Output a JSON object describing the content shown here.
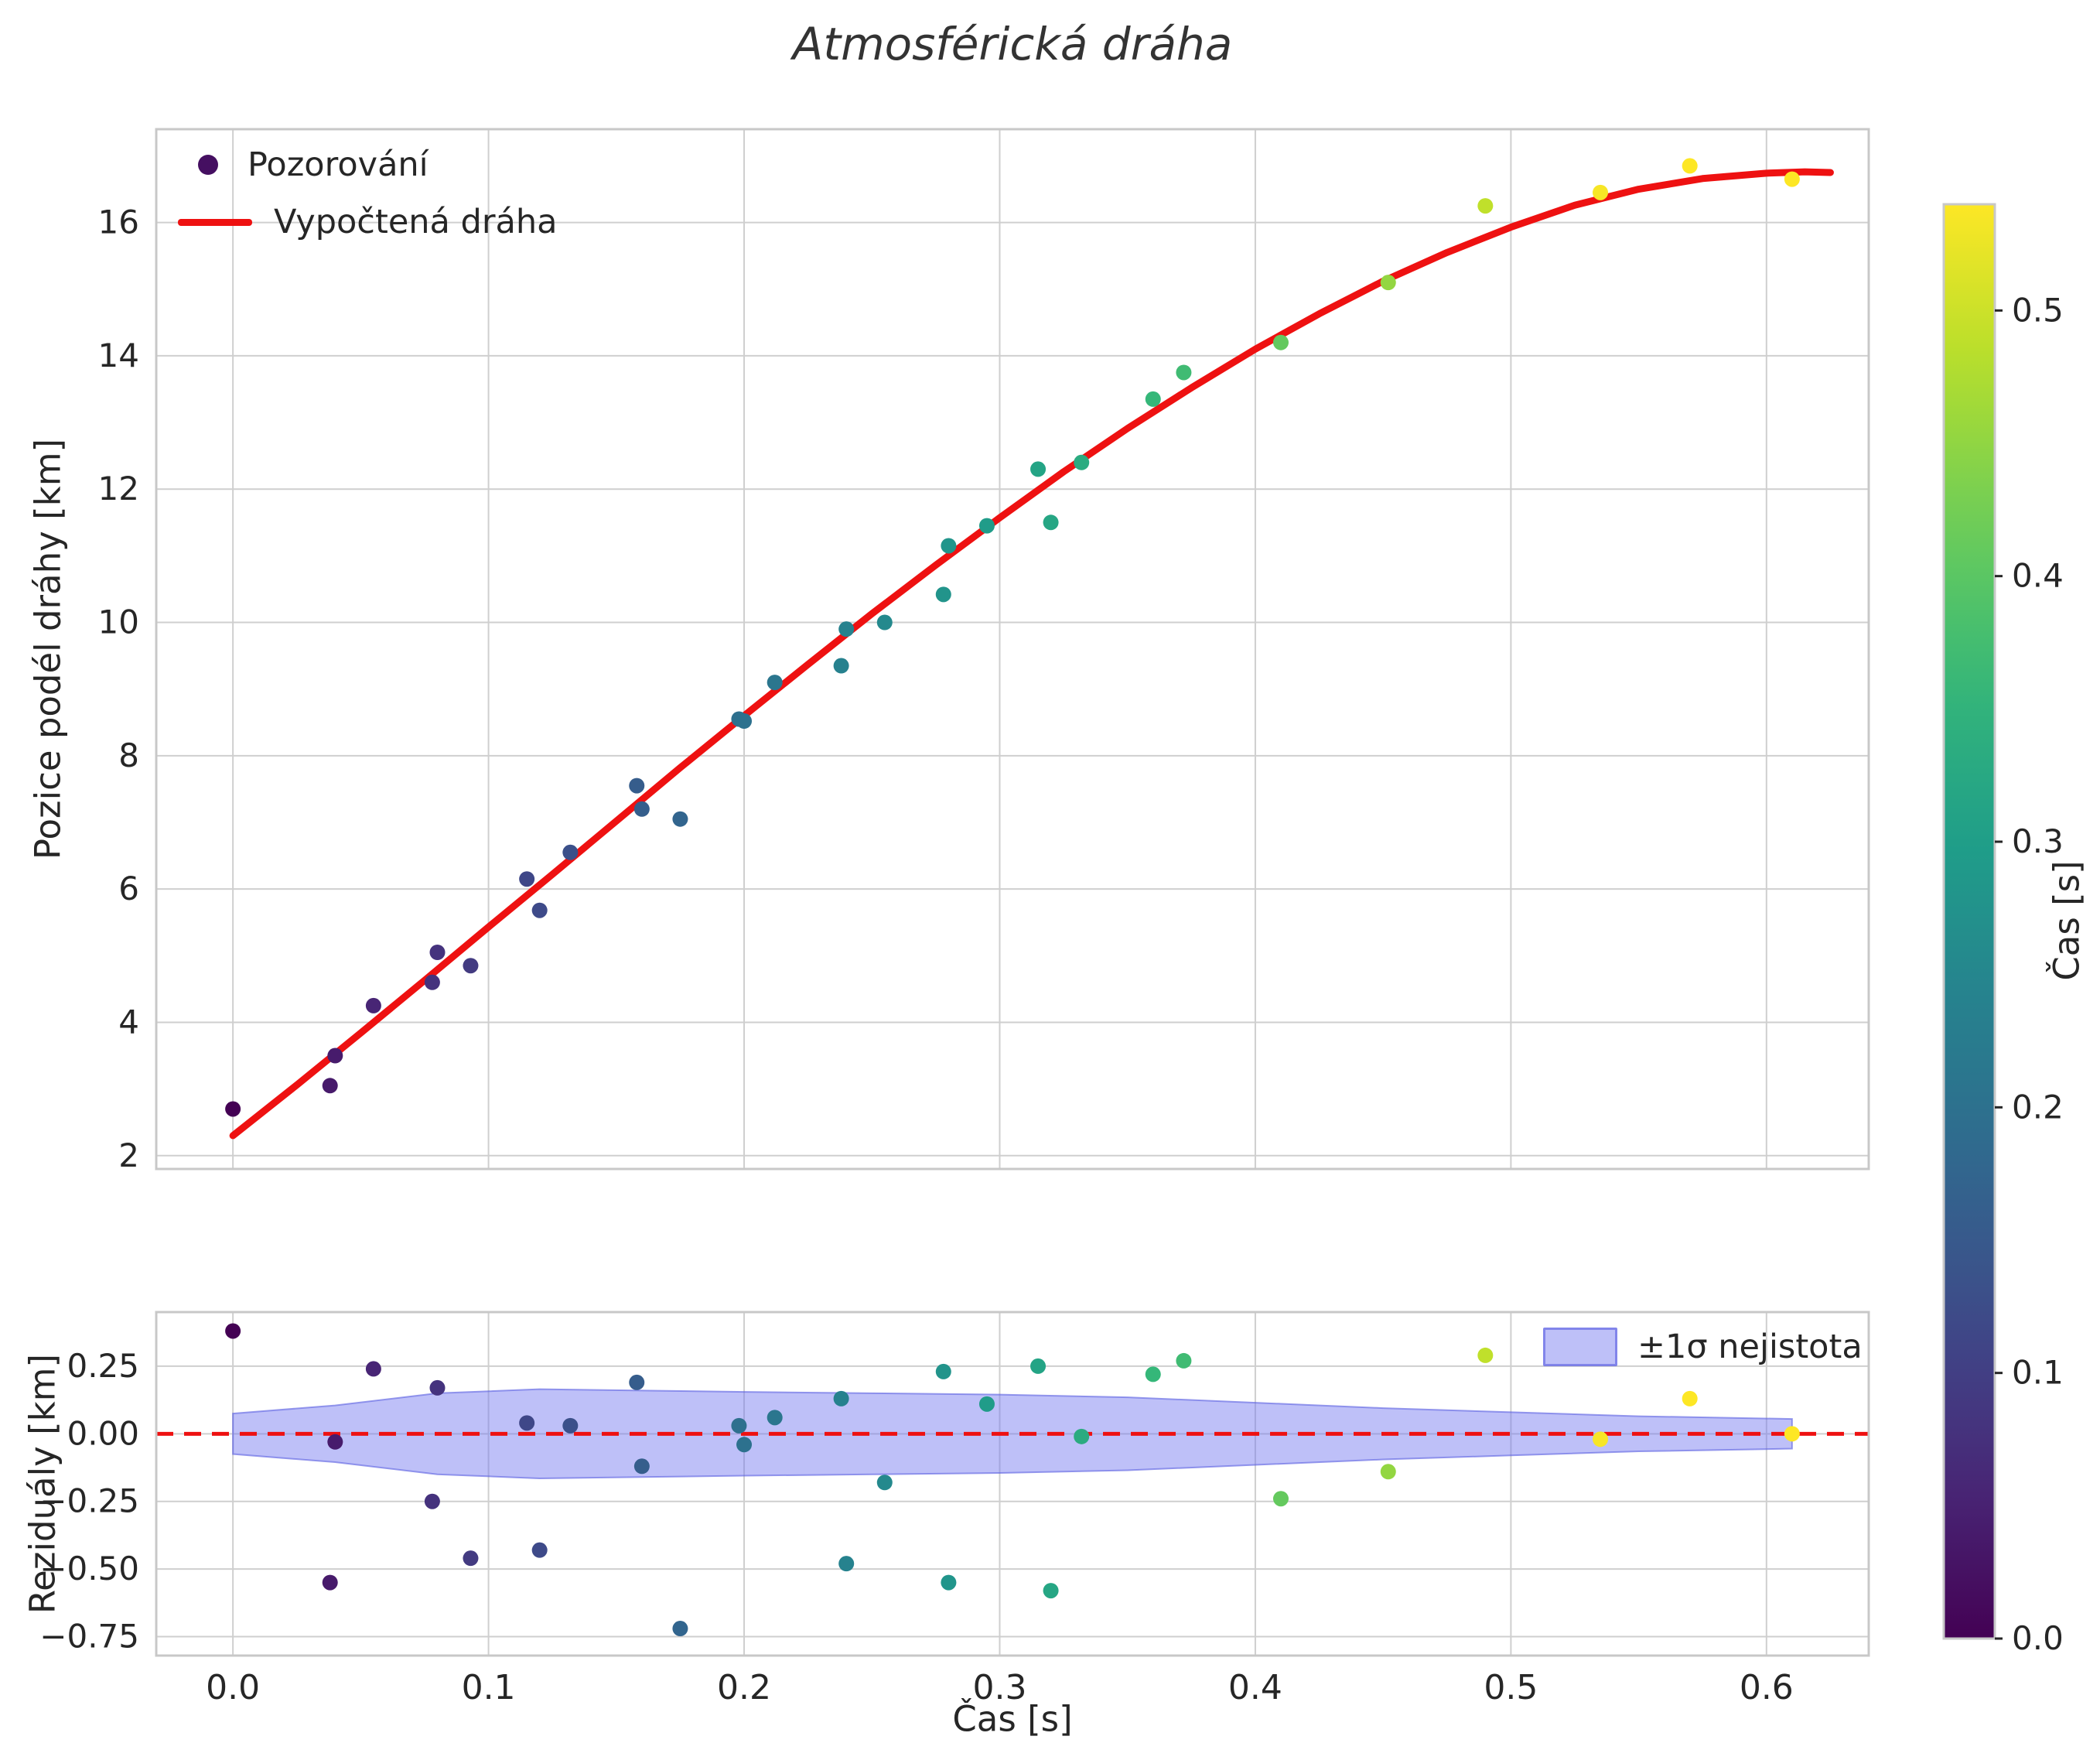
{
  "chart_data": {
    "type": "scatter",
    "title": "Atmosférická dráha",
    "xlabel": "Čas [s]",
    "xlim": [
      -0.03,
      0.64
    ],
    "xticks": [
      0.0,
      0.1,
      0.2,
      0.3,
      0.4,
      0.5,
      0.6
    ],
    "xtick_labels": [
      "0.0",
      "0.1",
      "0.2",
      "0.3",
      "0.4",
      "0.5",
      "0.6"
    ],
    "grid": true,
    "colors": {
      "curve_red": "#ee1111",
      "band_fill": "rgba(110,115,240,0.45)",
      "band_edge": "rgba(90,95,225,0.6)",
      "grid": "#cfcfcf",
      "spine": "#c8c8c8",
      "text": "#262626"
    },
    "panels": [
      {
        "name": "trajectory",
        "ylabel": "Pozice podél dráhy [km]",
        "ylim": [
          1.8,
          17.4
        ],
        "yticks": [
          2,
          4,
          6,
          8,
          10,
          12,
          14,
          16
        ],
        "ytick_labels": [
          "2",
          "4",
          "6",
          "8",
          "10",
          "12",
          "14",
          "16"
        ],
        "legend_position": "upper-left",
        "series": [
          {
            "name": "Pozorování",
            "type": "scatter",
            "color_by": "time",
            "t": [
              0.0,
              0.038,
              0.04,
              0.055,
              0.078,
              0.08,
              0.093,
              0.115,
              0.12,
              0.132,
              0.158,
              0.16,
              0.175,
              0.198,
              0.2,
              0.212,
              0.238,
              0.24,
              0.255,
              0.278,
              0.28,
              0.295,
              0.315,
              0.32,
              0.332,
              0.36,
              0.372,
              0.41,
              0.452,
              0.49,
              0.535,
              0.57,
              0.61
            ],
            "s": [
              2.7,
              3.05,
              3.5,
              4.25,
              4.6,
              5.05,
              4.85,
              6.15,
              5.68,
              6.55,
              7.55,
              7.2,
              7.05,
              8.55,
              8.52,
              9.1,
              9.35,
              9.9,
              10.0,
              10.42,
              11.15,
              11.45,
              12.3,
              11.5,
              12.4,
              13.35,
              13.75,
              14.2,
              15.1,
              16.25,
              16.45,
              16.85,
              16.65
            ]
          },
          {
            "name": "Vypočtená dráha",
            "type": "line",
            "color": "#ee1111",
            "t": [
              0.0,
              0.025,
              0.05,
              0.075,
              0.1,
              0.125,
              0.15,
              0.175,
              0.2,
              0.225,
              0.25,
              0.275,
              0.3,
              0.325,
              0.35,
              0.375,
              0.4,
              0.425,
              0.45,
              0.475,
              0.5,
              0.525,
              0.55,
              0.575,
              0.6,
              0.615,
              0.625
            ],
            "s": [
              2.3,
              3.06,
              3.84,
              4.63,
              5.43,
              6.22,
              7.02,
              7.82,
              8.6,
              9.37,
              10.13,
              10.86,
              11.57,
              12.26,
              12.91,
              13.52,
              14.1,
              14.63,
              15.12,
              15.55,
              15.93,
              16.26,
              16.5,
              16.66,
              16.74,
              16.76,
              16.75
            ]
          }
        ]
      },
      {
        "name": "residuals",
        "ylabel": "Reziduály [km]",
        "ylim": [
          -0.82,
          0.45
        ],
        "yticks": [
          0.25,
          0.0,
          -0.25,
          -0.5,
          -0.75
        ],
        "ytick_labels": [
          "0.25",
          "0.00",
          "−0.25",
          "−0.50",
          "−0.75"
        ],
        "zero_line": {
          "y": 0,
          "color": "#ee1111",
          "style": "dashed"
        },
        "band": {
          "label": "±1σ nejistota",
          "fill": "rgba(110,115,240,0.45)",
          "t": [
            0.0,
            0.04,
            0.08,
            0.12,
            0.16,
            0.2,
            0.25,
            0.3,
            0.35,
            0.4,
            0.45,
            0.5,
            0.55,
            0.61
          ],
          "sigma": [
            0.075,
            0.105,
            0.15,
            0.165,
            0.16,
            0.155,
            0.15,
            0.145,
            0.135,
            0.115,
            0.095,
            0.08,
            0.065,
            0.055
          ]
        },
        "series": [
          {
            "name": "residuals",
            "type": "scatter",
            "color_by": "time",
            "t": [
              0.0,
              0.038,
              0.04,
              0.055,
              0.078,
              0.08,
              0.093,
              0.115,
              0.12,
              0.132,
              0.158,
              0.16,
              0.175,
              0.198,
              0.2,
              0.212,
              0.238,
              0.24,
              0.255,
              0.278,
              0.28,
              0.295,
              0.315,
              0.32,
              0.332,
              0.36,
              0.372,
              0.41,
              0.452,
              0.49,
              0.535,
              0.57,
              0.61
            ],
            "r": [
              0.38,
              -0.55,
              -0.03,
              0.24,
              -0.25,
              0.17,
              -0.46,
              0.04,
              -0.43,
              0.03,
              0.19,
              -0.12,
              -0.72,
              0.03,
              -0.04,
              0.06,
              0.13,
              -0.48,
              -0.18,
              0.23,
              -0.55,
              0.11,
              0.25,
              -0.58,
              -0.01,
              0.22,
              0.27,
              -0.24,
              -0.14,
              0.29,
              -0.02,
              0.13,
              0.0
            ]
          }
        ]
      }
    ],
    "colorbar": {
      "label": "Čas [s]",
      "colormap": "viridis",
      "vmin": 0.0,
      "vmax": 0.54,
      "ticks": [
        0.0,
        0.1,
        0.2,
        0.3,
        0.4,
        0.5
      ],
      "tick_labels": [
        "0.0",
        "0.1",
        "0.2",
        "0.3",
        "0.4",
        "0.5"
      ]
    }
  }
}
